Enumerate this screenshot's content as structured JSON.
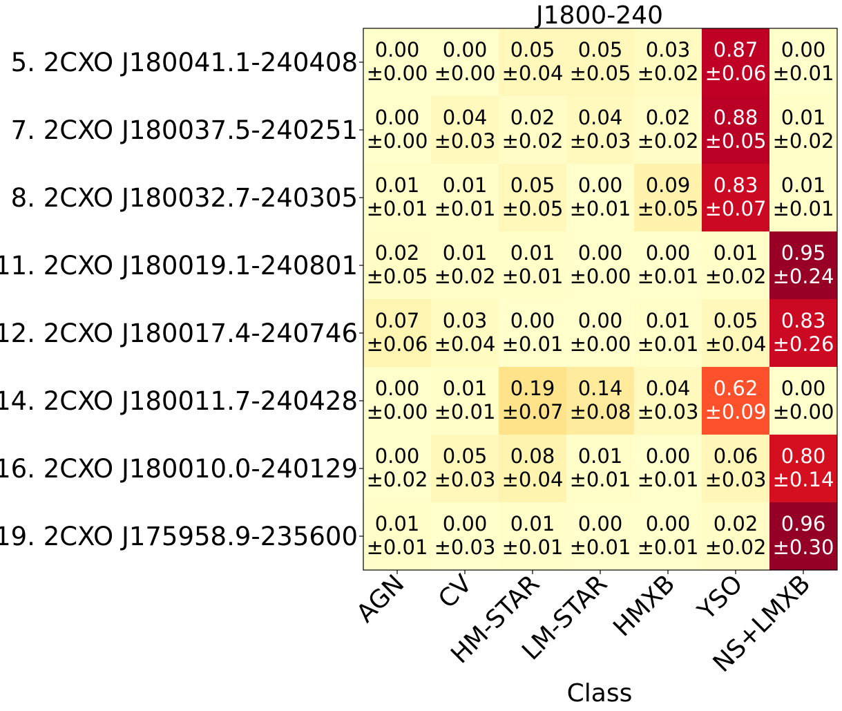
{
  "chart_data": {
    "type": "heatmap",
    "title": "J1800-240",
    "xlabel": "Class",
    "ylabel": "",
    "colormap": "YlOrRd",
    "value_range": [
      0,
      1
    ],
    "x_categories": [
      "AGN",
      "CV",
      "HM-STAR",
      "LM-STAR",
      "HMXB",
      "YSO",
      "NS+LMXB"
    ],
    "y_categories": [
      "5. 2CXO J180041.1-240408",
      "7. 2CXO J180037.5-240251",
      "8. 2CXO J180032.7-240305",
      "11. 2CXO J180019.1-240801",
      "12. 2CXO J180017.4-240746",
      "14. 2CXO J180011.7-240428",
      "16. 2CXO J180010.0-240129",
      "19. 2CXO J175958.9-235600"
    ],
    "values": [
      [
        0.0,
        0.0,
        0.05,
        0.05,
        0.03,
        0.87,
        0.0
      ],
      [
        0.0,
        0.04,
        0.02,
        0.04,
        0.02,
        0.88,
        0.01
      ],
      [
        0.01,
        0.01,
        0.05,
        0.0,
        0.09,
        0.83,
        0.01
      ],
      [
        0.02,
        0.01,
        0.01,
        0.0,
        0.0,
        0.01,
        0.95
      ],
      [
        0.07,
        0.03,
        0.0,
        0.0,
        0.01,
        0.05,
        0.83
      ],
      [
        0.0,
        0.01,
        0.19,
        0.14,
        0.04,
        0.62,
        0.0
      ],
      [
        0.0,
        0.05,
        0.08,
        0.01,
        0.0,
        0.06,
        0.8
      ],
      [
        0.01,
        0.0,
        0.01,
        0.0,
        0.0,
        0.02,
        0.96
      ]
    ],
    "errors": [
      [
        0.0,
        0.0,
        0.04,
        0.05,
        0.02,
        0.06,
        0.01
      ],
      [
        0.0,
        0.03,
        0.02,
        0.03,
        0.02,
        0.05,
        0.02
      ],
      [
        0.01,
        0.01,
        0.05,
        0.01,
        0.05,
        0.07,
        0.01
      ],
      [
        0.05,
        0.02,
        0.01,
        0.0,
        0.01,
        0.02,
        0.24
      ],
      [
        0.06,
        0.04,
        0.01,
        0.0,
        0.01,
        0.04,
        0.26
      ],
      [
        0.0,
        0.01,
        0.07,
        0.08,
        0.03,
        0.09,
        0.0
      ],
      [
        0.02,
        0.03,
        0.04,
        0.01,
        0.01,
        0.03,
        0.14
      ],
      [
        0.01,
        0.03,
        0.01,
        0.01,
        0.01,
        0.02,
        0.3
      ]
    ]
  }
}
